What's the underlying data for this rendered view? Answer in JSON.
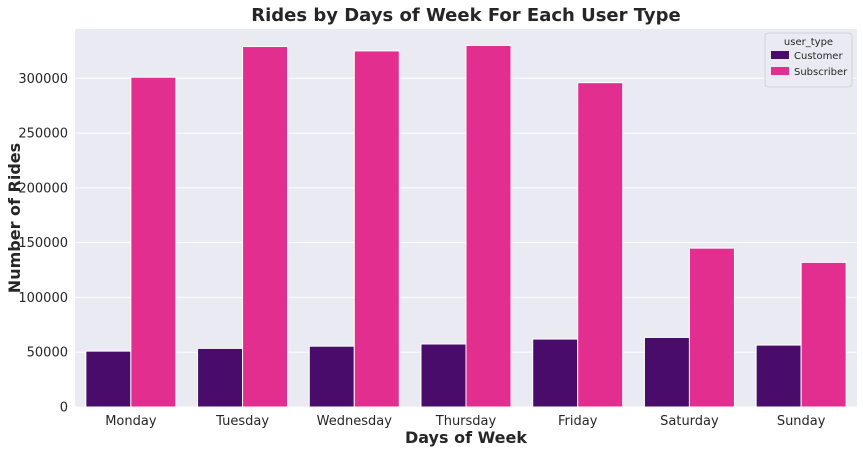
{
  "chart_data": {
    "type": "bar",
    "title": "Rides by Days of Week For Each User Type",
    "xlabel": "Days of Week",
    "ylabel": "Number of Rides",
    "categories": [
      "Monday",
      "Tuesday",
      "Wednesday",
      "Thursday",
      "Friday",
      "Saturday",
      "Sunday"
    ],
    "series": [
      {
        "name": "Customer",
        "color": "#4a0c6b",
        "values": [
          51000,
          53500,
          55500,
          57500,
          62000,
          63500,
          56500
        ]
      },
      {
        "name": "Subscriber",
        "color": "#e22e8f",
        "values": [
          301000,
          329000,
          325000,
          330000,
          296000,
          145000,
          132000
        ]
      }
    ],
    "yticks": [
      0,
      50000,
      100000,
      150000,
      200000,
      250000,
      300000
    ],
    "ytick_labels": [
      "0",
      "50000",
      "100000",
      "150000",
      "200000",
      "250000",
      "300000"
    ],
    "ylim": [
      0,
      345000
    ],
    "grid": true,
    "legend": {
      "title": "user_type",
      "placement": "top-right"
    },
    "style": {
      "plot_background": "#eaeaf2",
      "grid_color": "#ffffff"
    }
  }
}
